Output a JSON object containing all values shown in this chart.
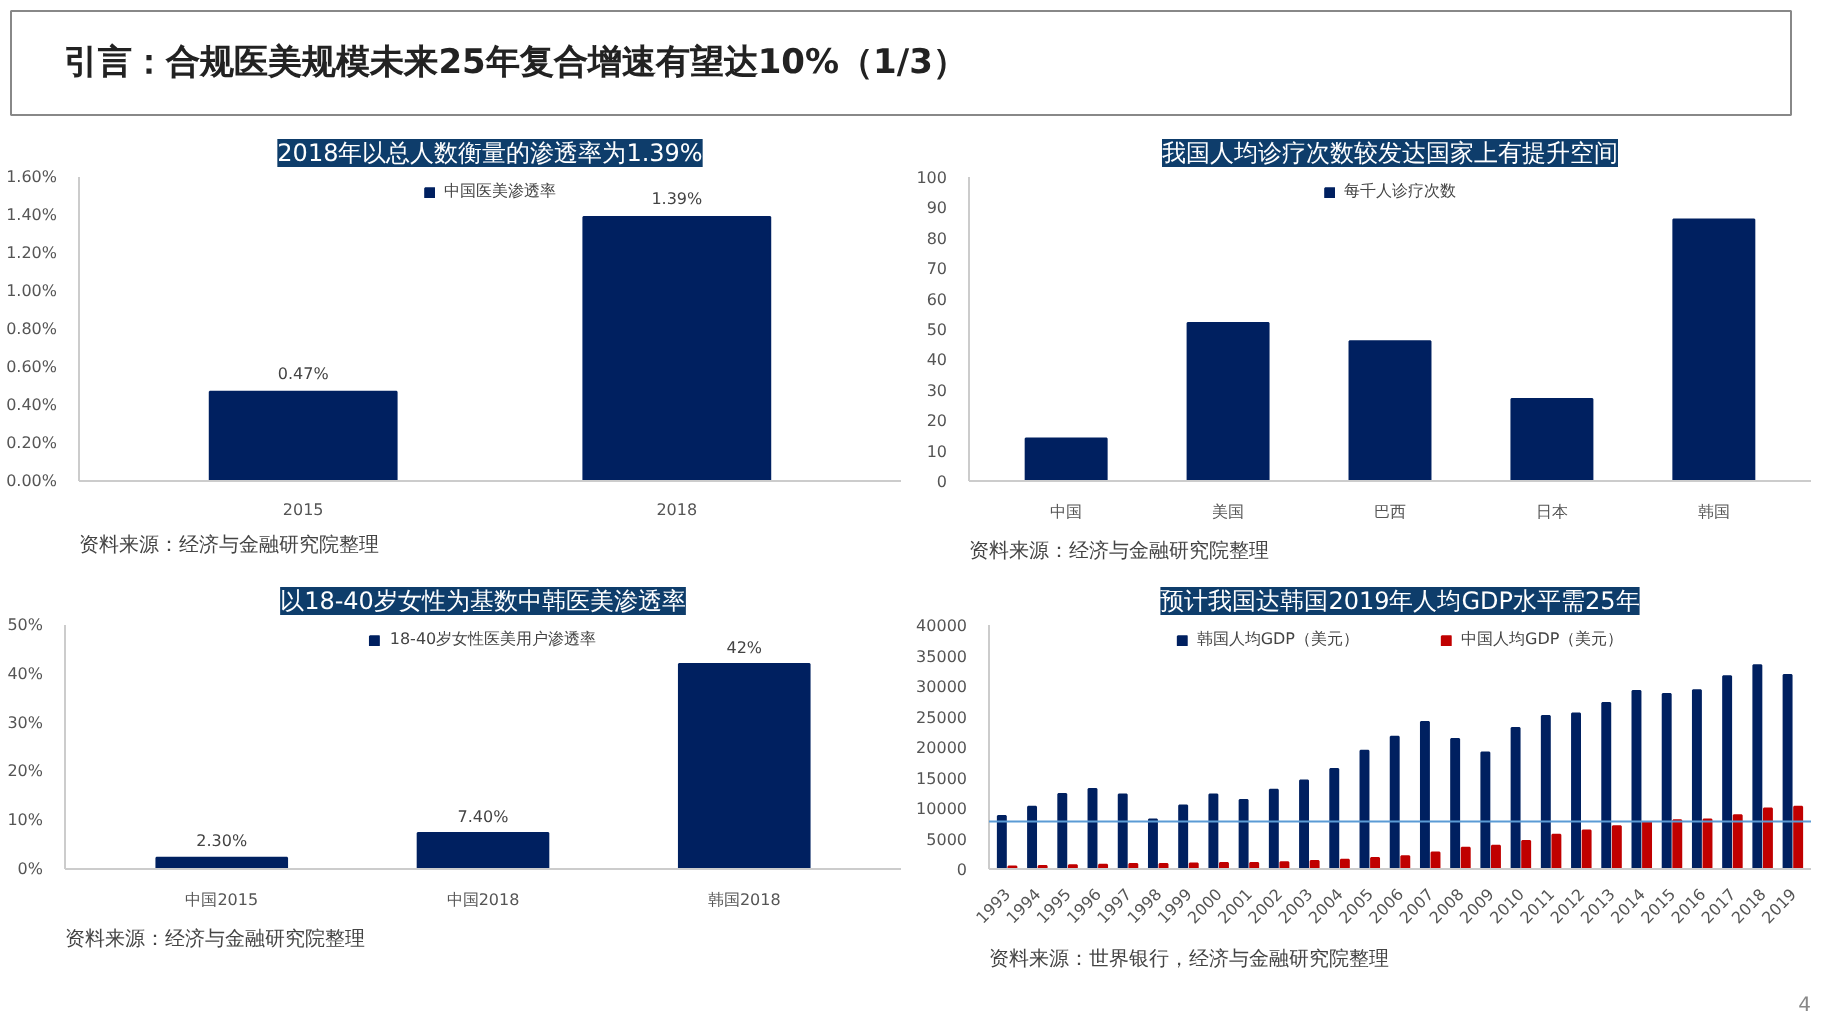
{
  "chart_data": [
    {
      "type": "other",
      "title": "引言：合规医美规模未来25年复合增速有望达10%（1/3）"
    },
    {
      "type": "bar",
      "title": "2018年以总人数衡量的渗透率为1.39%",
      "categories": [
        "2015",
        "2018"
      ],
      "series": [
        {
          "name": "中国医美渗透率",
          "color": "#002060",
          "values": [
            0.47,
            1.39
          ],
          "value_labels": [
            "0.47%",
            "1.39%"
          ]
        }
      ],
      "ylim": [
        0,
        1.6
      ],
      "yticks": [
        {
          "value": 0,
          "label": "0.00%"
        },
        {
          "value": 0.2,
          "label": "0.20%"
        },
        {
          "value": 0.4,
          "label": "0.40%"
        },
        {
          "value": 0.6,
          "label": "0.60%"
        },
        {
          "value": 0.8,
          "label": "0.80%"
        },
        {
          "value": 1.0,
          "label": "1.00%"
        },
        {
          "value": 1.2,
          "label": "1.20%"
        },
        {
          "value": 1.4,
          "label": "1.40%"
        },
        {
          "value": 1.6,
          "label": "1.60%"
        }
      ],
      "legend": "top",
      "grid": false,
      "annotations": [
        "资料来源：经济与金融研究院整理"
      ]
    },
    {
      "type": "bar",
      "title": "我国人均诊疗次数较发达国家上有提升空间",
      "categories": [
        "中国",
        "美国",
        "巴西",
        "日本",
        "韩国"
      ],
      "series": [
        {
          "name": "每千人诊疗次数",
          "color": "#002060",
          "values": [
            14,
            52,
            46,
            27,
            86
          ]
        }
      ],
      "ylim": [
        0,
        100
      ],
      "yticks": [
        0,
        10,
        20,
        30,
        40,
        50,
        60,
        70,
        80,
        90,
        100
      ],
      "legend": "top",
      "grid": false,
      "annotations": [
        "资料来源：经济与金融研究院整理"
      ]
    },
    {
      "type": "bar",
      "title": "以18-40岁女性为基数中韩医美渗透率",
      "categories": [
        "中国2015",
        "中国2018",
        "韩国2018"
      ],
      "series": [
        {
          "name": "18-40岁女性医美用户渗透率",
          "color": "#002060",
          "values": [
            2.3,
            7.4,
            42
          ],
          "value_labels": [
            "2.30%",
            "7.40%",
            "42%"
          ]
        }
      ],
      "ylim": [
        0,
        50
      ],
      "yticks": [
        {
          "value": 0,
          "label": "0%"
        },
        {
          "value": 10,
          "label": "10%"
        },
        {
          "value": 20,
          "label": "20%"
        },
        {
          "value": 30,
          "label": "30%"
        },
        {
          "value": 40,
          "label": "40%"
        },
        {
          "value": 50,
          "label": "50%"
        }
      ],
      "legend": "top",
      "grid": false,
      "annotations": [
        "资料来源：经济与金融研究院整理"
      ]
    },
    {
      "type": "bar",
      "title": "预计我国达韩国2019年人均GDP水平需25年",
      "categories": [
        "1993",
        "1994",
        "1995",
        "1996",
        "1997",
        "1998",
        "1999",
        "2000",
        "2001",
        "2002",
        "2003",
        "2004",
        "2005",
        "2006",
        "2007",
        "2008",
        "2009",
        "2010",
        "2011",
        "2012",
        "2013",
        "2014",
        "2015",
        "2016",
        "2017",
        "2018",
        "2019"
      ],
      "series": [
        {
          "name": "韩国人均GDP（美元）",
          "color": "#002060",
          "values": [
            8700,
            10200,
            12300,
            13100,
            12200,
            8100,
            10400,
            12200,
            11300,
            13000,
            14500,
            16400,
            19400,
            21700,
            24100,
            21300,
            19100,
            23100,
            25100,
            25500,
            27200,
            29200,
            28700,
            29300,
            31600,
            33400,
            31800
          ]
        },
        {
          "name": "中国人均GDP（美元）",
          "color": "#c00000",
          "values": [
            400,
            500,
            600,
            700,
            800,
            800,
            900,
            1000,
            1000,
            1100,
            1300,
            1500,
            1800,
            2100,
            2700,
            3500,
            3800,
            4600,
            5600,
            6300,
            7000,
            7700,
            8000,
            8100,
            8800,
            9900,
            10200
          ]
        }
      ],
      "ylim": [
        0,
        40000
      ],
      "yticks": [
        0,
        5000,
        10000,
        15000,
        20000,
        25000,
        30000,
        35000,
        40000
      ],
      "ref_lines": [
        {
          "axis": "y",
          "value": 7800,
          "color": "#5b9bd5"
        }
      ],
      "legend": "top",
      "grid": false,
      "annotations": [
        "资料来源：世界银行，经济与金融研究院整理",
        "4"
      ]
    }
  ]
}
